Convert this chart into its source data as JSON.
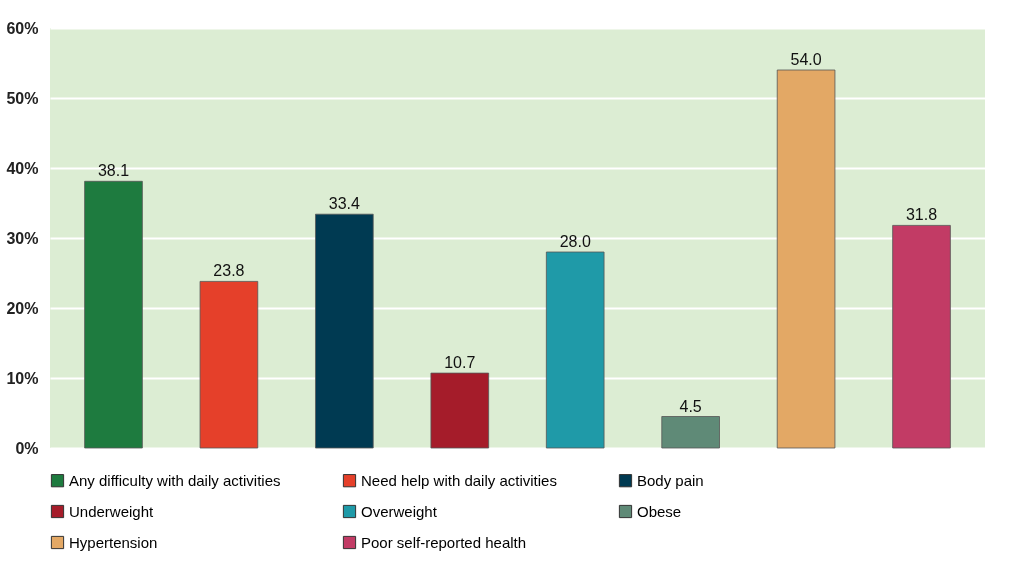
{
  "chart_data": {
    "type": "bar",
    "categories": [
      null,
      null,
      null,
      null,
      null,
      null,
      null,
      null
    ],
    "series": [
      {
        "name": "Any difficulty with daily activities",
        "color": "#1e7b3f",
        "values": [
          38.1,
          null,
          null,
          null,
          null,
          null,
          null,
          null
        ],
        "value_labels": [
          "38.1",
          null,
          null,
          null,
          null,
          null,
          null,
          null
        ]
      },
      {
        "name": "Need help with daily activities",
        "color": "#e5402a",
        "values": [
          null,
          23.8,
          null,
          null,
          null,
          null,
          null,
          null
        ],
        "value_labels": [
          null,
          "23.8",
          null,
          null,
          null,
          null,
          null,
          null
        ]
      },
      {
        "name": "Body pain",
        "color": "#003a52",
        "values": [
          null,
          null,
          33.4,
          null,
          null,
          null,
          null,
          null
        ],
        "value_labels": [
          null,
          null,
          "33.4",
          null,
          null,
          null,
          null,
          null
        ]
      },
      {
        "name": "Underweight",
        "color": "#a51c2a",
        "values": [
          null,
          null,
          null,
          10.7,
          null,
          null,
          null,
          null
        ],
        "value_labels": [
          null,
          null,
          null,
          "10.7",
          null,
          null,
          null,
          null
        ]
      },
      {
        "name": "Overweight",
        "color": "#1f9aa8",
        "values": [
          null,
          null,
          null,
          null,
          28,
          null,
          null,
          null
        ],
        "value_labels": [
          null,
          null,
          null,
          null,
          "28.0",
          null,
          null,
          null
        ]
      },
      {
        "name": "Obese",
        "color": "#5f8a77",
        "values": [
          null,
          null,
          null,
          null,
          null,
          4.5,
          null,
          null
        ],
        "value_labels": [
          null,
          null,
          null,
          null,
          null,
          "4.5",
          null,
          null
        ]
      },
      {
        "name": "Hypertension",
        "color": "#e3a865",
        "values": [
          null,
          null,
          null,
          null,
          null,
          null,
          54,
          null
        ],
        "value_labels": [
          null,
          null,
          null,
          null,
          null,
          null,
          "54.0",
          null
        ]
      },
      {
        "name": "Poor self-reported health",
        "color": "#c23b65",
        "values": [
          null,
          null,
          null,
          null,
          null,
          null,
          null,
          31.8
        ],
        "value_labels": [
          null,
          null,
          null,
          null,
          null,
          null,
          null,
          "31.8"
        ]
      }
    ],
    "ylim": [
      0,
      60
    ],
    "yticks": [
      {
        "value": 0,
        "label": "0%"
      },
      {
        "value": 10,
        "label": "10%"
      },
      {
        "value": 20,
        "label": "20%"
      },
      {
        "value": 30,
        "label": "30%"
      },
      {
        "value": 40,
        "label": "40%"
      },
      {
        "value": 50,
        "label": "50%"
      },
      {
        "value": 60,
        "label": "60%"
      }
    ],
    "grid": "y",
    "legend": "bottom"
  }
}
